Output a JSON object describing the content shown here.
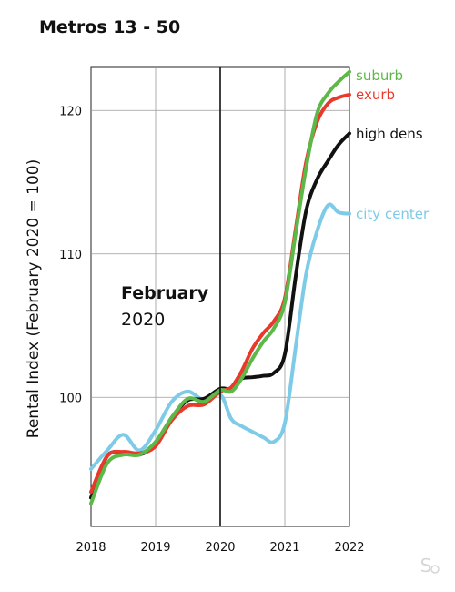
{
  "chart_data": {
    "type": "line",
    "title": "Metros 13 - 50",
    "ylabel": "Rental Index (February 2020 = 100)",
    "xlabel": "",
    "xlim": [
      2018,
      2022
    ],
    "ylim": [
      91,
      123
    ],
    "x_ticks": [
      "2018",
      "2019",
      "2020",
      "2021",
      "2022"
    ],
    "y_ticks": [
      "100",
      "110",
      "120"
    ],
    "grid": true,
    "legend": "right, at line ends",
    "annotation": {
      "bold": "February",
      "year": "2020",
      "x": 2020
    },
    "x": [
      2018.0,
      2018.25,
      2018.5,
      2018.75,
      2019.0,
      2019.25,
      2019.5,
      2019.75,
      2020.0,
      2020.17,
      2020.33,
      2020.5,
      2020.67,
      2020.83,
      2021.0,
      2021.17,
      2021.33,
      2021.5,
      2021.67,
      2021.83,
      2022.0
    ],
    "series": [
      {
        "name": "suburb",
        "color": "#5cb847",
        "values": [
          92.6,
          95.4,
          96.0,
          96.0,
          96.9,
          98.6,
          99.9,
          99.7,
          100.5,
          100.4,
          101.3,
          102.7,
          103.9,
          104.8,
          106.6,
          111.5,
          116.0,
          119.8,
          121.2,
          122.0,
          122.7
        ]
      },
      {
        "name": "exurb",
        "color": "#e8392c",
        "values": [
          93.4,
          95.9,
          96.2,
          96.1,
          96.6,
          98.4,
          99.4,
          99.5,
          100.4,
          100.7,
          101.8,
          103.4,
          104.5,
          105.3,
          106.9,
          111.8,
          116.4,
          119.2,
          120.5,
          120.9,
          121.1
        ]
      },
      {
        "name": "high dens",
        "color": "#111111",
        "values": [
          93.0,
          95.9,
          96.1,
          96.0,
          96.7,
          98.6,
          99.8,
          99.9,
          100.6,
          100.6,
          101.3,
          101.4,
          101.5,
          101.7,
          103.0,
          108.5,
          113.0,
          115.2,
          116.5,
          117.6,
          118.4
        ]
      },
      {
        "name": "city center",
        "color": "#7ecbe8",
        "values": [
          95.0,
          96.3,
          97.4,
          96.3,
          97.7,
          99.7,
          100.4,
          99.8,
          100.2,
          98.5,
          98.0,
          97.6,
          97.2,
          96.9,
          98.2,
          103.6,
          108.6,
          111.6,
          113.4,
          112.9,
          112.8
        ]
      }
    ]
  }
}
